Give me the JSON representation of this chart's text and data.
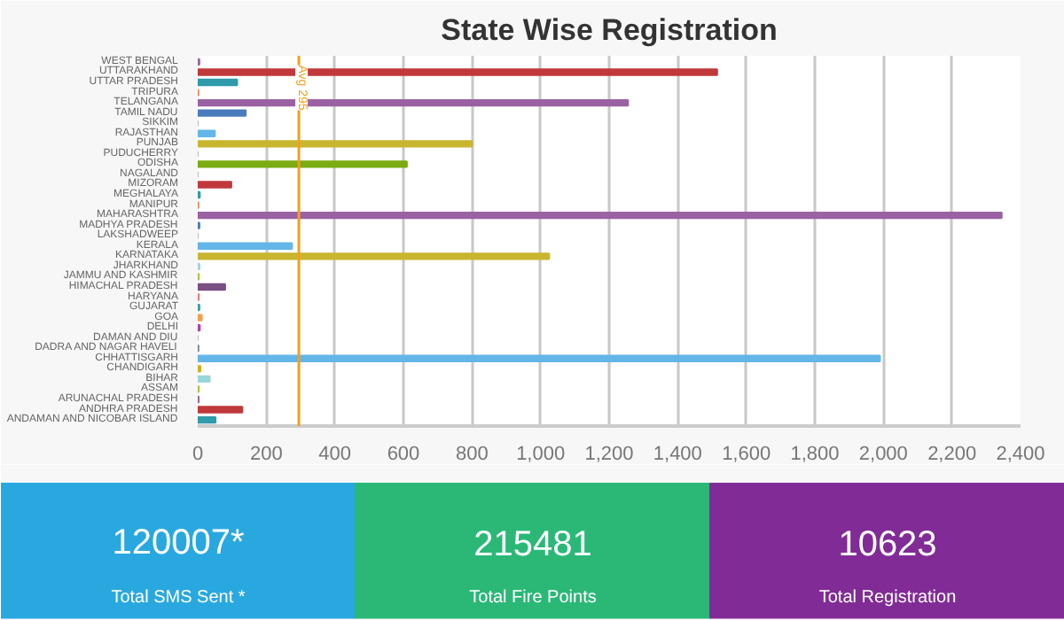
{
  "chart_data": [
    {
      "type": "bar",
      "orientation": "horizontal",
      "title": "State Wise Registration",
      "categories": [
        "WEST BENGAL",
        "UTTARAKHAND",
        "UTTAR PRADESH",
        "TRIPURA",
        "TELANGANA",
        "TAMIL NADU",
        "SIKKIM",
        "RAJASTHAN",
        "PUNJAB",
        "PUDUCHERRY",
        "ODISHA",
        "NAGALAND",
        "MIZORAM",
        "MEGHALAYA",
        "MANIPUR",
        "MAHARASHTRA",
        "MADHYA PRADESH",
        "LAKSHADWEEP",
        "KERALA",
        "KARNATAKA",
        "JHARKHAND",
        "JAMMU AND KASHMIR",
        "HIMACHAL PRADESH",
        "HARYANA",
        "GUJARAT",
        "GOA",
        "DELHI",
        "DAMAN AND DIU",
        "DADRA AND NAGAR HAVELI",
        "CHHATTISGARH",
        "CHANDIGARH",
        "BIHAR",
        "ASSAM",
        "ARUNACHAL PRADESH",
        "ANDHRA PRADESH",
        "ANDAMAN AND NICOBAR ISLAND"
      ],
      "values": [
        5,
        1515,
        115,
        2,
        1255,
        140,
        0,
        50,
        800,
        0,
        610,
        0,
        98,
        6,
        2,
        2345,
        5,
        0,
        275,
        1025,
        5,
        3,
        80,
        3,
        5,
        12,
        6,
        0,
        2,
        1990,
        8,
        35,
        3,
        3,
        130,
        52
      ],
      "colors": [
        "#9a6b9e",
        "#c0393b",
        "#2f9bab",
        "#e98a5a",
        "#9b62a3",
        "#4a7dbd",
        "#bbbbbb",
        "#64b6e8",
        "#c8b62e",
        "#bbbbbb",
        "#7bab12",
        "#bbbbbb",
        "#c0393b",
        "#2f9bab",
        "#e98a5a",
        "#9b62a3",
        "#4a7dbd",
        "#bbbbbb",
        "#64b6e8",
        "#c8b62e",
        "#9fd4dc",
        "#b0c040",
        "#7a4f82",
        "#e0807a",
        "#3aa0b0",
        "#f0a050",
        "#b040b0",
        "#bbbbbb",
        "#708090",
        "#64b6e8",
        "#d4b020",
        "#99d5d8",
        "#b0c040",
        "#9a6b9e",
        "#c0393b",
        "#2f9bab"
      ],
      "xlim": [
        0,
        2400
      ],
      "xticks": [
        0,
        200,
        400,
        600,
        800,
        {
          "value": 1000,
          "label": "1,000"
        },
        {
          "value": 1200,
          "label": "1,200"
        },
        {
          "value": 1400,
          "label": "1,400"
        },
        {
          "value": 1600,
          "label": "1,600"
        },
        {
          "value": 1800,
          "label": "1,800"
        },
        {
          "value": 2000,
          "label": "2,000"
        },
        {
          "value": 2200,
          "label": "2,200"
        },
        {
          "value": 2400,
          "label": "2,400"
        }
      ],
      "grid": "x",
      "ref_lines": [
        {
          "axis": "x",
          "value": 295,
          "label": "Avg 295",
          "color": "#f0a020"
        }
      ]
    },
    {
      "type": "other",
      "categories": [
        "Total SMS Sent *",
        "Total Fire Points",
        "Total Registration"
      ],
      "value_labels": [
        "120007*",
        "215481",
        "10623"
      ],
      "colors": [
        "#29a8e0",
        "#2bb877",
        "#812c96"
      ]
    }
  ]
}
